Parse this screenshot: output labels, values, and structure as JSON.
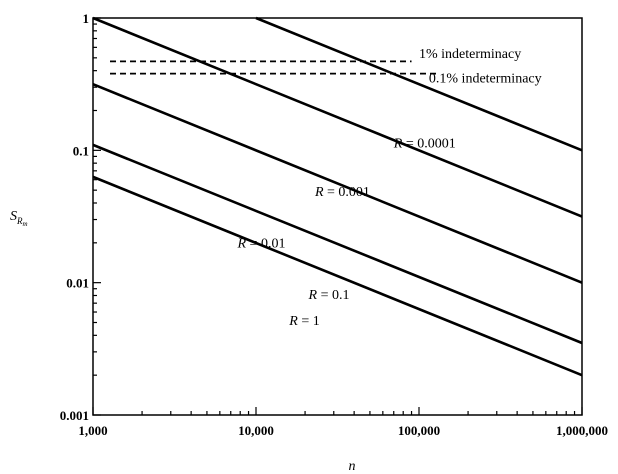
{
  "chart_data": {
    "type": "line",
    "xlabel": "n",
    "ylabel_main": "S",
    "ylabel_sub": "R",
    "ylabel_subsub": "m",
    "xscale": "log",
    "yscale": "log",
    "xlim": [
      1000,
      1000000
    ],
    "ylim": [
      0.001,
      1
    ],
    "grid": false,
    "x_ticks": [
      {
        "value": 1000,
        "label": "1,000"
      },
      {
        "value": 10000,
        "label": "10,000"
      },
      {
        "value": 100000,
        "label": "100,000"
      },
      {
        "value": 1000000,
        "label": "1,000,000"
      }
    ],
    "y_ticks": [
      {
        "value": 1,
        "label": "1"
      },
      {
        "value": 0.1,
        "label": "0.1"
      },
      {
        "value": 0.01,
        "label": "0.01"
      },
      {
        "value": 0.001,
        "label": "0.001"
      }
    ],
    "series": [
      {
        "name": "R = 0.0001",
        "label_var": "R",
        "label_val": "= 0.0001",
        "x": [
          10000,
          1000000
        ],
        "y": [
          1,
          0.1
        ],
        "label_at": [
          70000,
          0.105
        ]
      },
      {
        "name": "R = 0.001",
        "label_var": "R",
        "label_val": "= 0.001",
        "x": [
          1000,
          1000000
        ],
        "y": [
          1,
          0.0316
        ],
        "label_at": [
          23000,
          0.045
        ]
      },
      {
        "name": "R = 0.01",
        "label_var": "R",
        "label_val": "= 0.01",
        "x": [
          1000,
          1000000
        ],
        "y": [
          0.316,
          0.01
        ],
        "label_at": [
          7700,
          0.0185
        ]
      },
      {
        "name": "R = 0.1",
        "label_var": "R",
        "label_val": "= 0.1",
        "x": [
          1000,
          1000000
        ],
        "y": [
          0.11,
          0.0035
        ],
        "label_at": [
          21000,
          0.0075
        ]
      },
      {
        "name": "R = 1",
        "label_var": "R",
        "label_val": "= 1",
        "x": [
          1000,
          1000000
        ],
        "y": [
          0.063,
          0.002
        ],
        "label_at": [
          16000,
          0.0048
        ]
      }
    ],
    "reference_lines": [
      {
        "name": "1% indeterminacy",
        "label": "1% indeterminacy",
        "y": 0.47,
        "x": [
          1000,
          90000
        ],
        "label_at": [
          100000,
          0.5
        ]
      },
      {
        "name": "0.1% indeterminacy",
        "label": "0.1% indeterminacy",
        "y": 0.38,
        "x": [
          1000,
          130000
        ],
        "label_at": [
          115000,
          0.325
        ]
      }
    ]
  }
}
